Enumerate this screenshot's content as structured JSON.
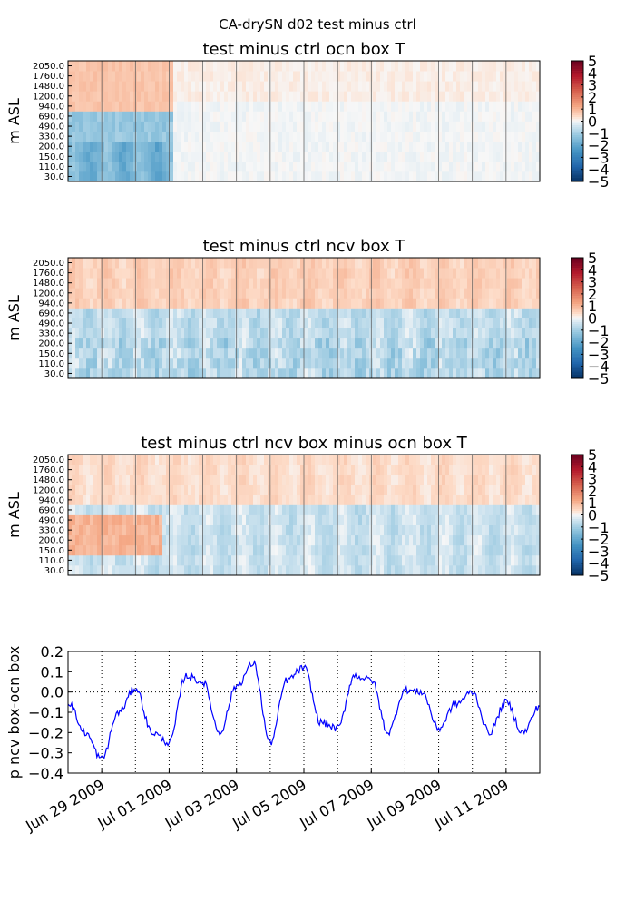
{
  "suptitle": "CA-drySN d02 test minus ctrl",
  "chart_data": [
    {
      "type": "heatmap",
      "title": "test minus ctrl ocn box T",
      "ylabel": "m ASL",
      "y_tick_labels": [
        "30.0",
        "110.0",
        "150.0",
        "200.0",
        "330.0",
        "490.0",
        "690.0",
        "940.0",
        "1200.0",
        "1480.0",
        "1760.0",
        "2050.0"
      ],
      "x_range": [
        "2009-06-28",
        "2009-07-12"
      ],
      "vertical_gridlines": [
        "2009-06-29",
        "2009-06-30",
        "2009-07-01",
        "2009-07-02",
        "2009-07-03",
        "2009-07-04",
        "2009-07-05",
        "2009-07-06",
        "2009-07-07",
        "2009-07-08",
        "2009-07-09",
        "2009-07-10",
        "2009-07-11"
      ],
      "colormap": "RdBu_r",
      "colorbar_range": [
        -5,
        5
      ],
      "colorbar_ticks": [
        "5",
        "4",
        "3",
        "2",
        "1",
        "0",
        "−1",
        "−2",
        "−3",
        "−4",
        "−5"
      ]
    },
    {
      "type": "heatmap",
      "title": "test minus ctrl ncv box T",
      "ylabel": "m ASL",
      "y_tick_labels": [
        "30.0",
        "110.0",
        "150.0",
        "200.0",
        "330.0",
        "490.0",
        "690.0",
        "940.0",
        "1200.0",
        "1480.0",
        "1760.0",
        "2050.0"
      ],
      "x_range": [
        "2009-06-28",
        "2009-07-12"
      ],
      "vertical_gridlines": [
        "2009-06-29",
        "2009-06-30",
        "2009-07-01",
        "2009-07-02",
        "2009-07-03",
        "2009-07-04",
        "2009-07-05",
        "2009-07-06",
        "2009-07-07",
        "2009-07-08",
        "2009-07-09",
        "2009-07-10",
        "2009-07-11"
      ],
      "colormap": "RdBu_r",
      "colorbar_range": [
        -5,
        5
      ],
      "colorbar_ticks": [
        "5",
        "4",
        "3",
        "2",
        "1",
        "0",
        "−1",
        "−2",
        "−3",
        "−4",
        "−5"
      ]
    },
    {
      "type": "heatmap",
      "title": "test minus ctrl ncv box minus ocn box T",
      "ylabel": "m ASL",
      "y_tick_labels": [
        "30.0",
        "110.0",
        "150.0",
        "200.0",
        "330.0",
        "490.0",
        "690.0",
        "940.0",
        "1200.0",
        "1480.0",
        "1760.0",
        "2050.0"
      ],
      "x_range": [
        "2009-06-28",
        "2009-07-12"
      ],
      "vertical_gridlines": [
        "2009-06-29",
        "2009-06-30",
        "2009-07-01",
        "2009-07-02",
        "2009-07-03",
        "2009-07-04",
        "2009-07-05",
        "2009-07-06",
        "2009-07-07",
        "2009-07-08",
        "2009-07-09",
        "2009-07-10",
        "2009-07-11"
      ],
      "colormap": "RdBu_r",
      "colorbar_range": [
        -5,
        5
      ],
      "colorbar_ticks": [
        "5",
        "4",
        "3",
        "2",
        "1",
        "0",
        "−1",
        "−2",
        "−3",
        "−4",
        "−5"
      ]
    },
    {
      "type": "line",
      "title": "",
      "ylabel": "p ncv box-ocn box",
      "xlabel": "",
      "x_range": [
        "2009-06-28",
        "2009-07-12"
      ],
      "ylim": [
        -0.4,
        0.2
      ],
      "y_ticks": [
        "0.2",
        "0.1",
        "0.0",
        "−0.1",
        "−0.2",
        "−0.3",
        "−0.4"
      ],
      "x_tick_labels": [
        "Jun 29 2009",
        "Jul 01 2009",
        "Jul 03 2009",
        "Jul 05 2009",
        "Jul 07 2009",
        "Jul 09 2009",
        "Jul 11 2009"
      ],
      "x_tick_dates": [
        "2009-06-29",
        "2009-07-01",
        "2009-07-03",
        "2009-07-05",
        "2009-07-07",
        "2009-07-09",
        "2009-07-11"
      ],
      "reference_line": 0.0,
      "grid": "vertical dotted",
      "series": [
        {
          "color": "#0000ff",
          "x": [
            "2009-06-28",
            "2009-06-28T12:00",
            "2009-06-29",
            "2009-06-29T12:00",
            "2009-06-30",
            "2009-06-30T12:00",
            "2009-07-01",
            "2009-07-01T12:00",
            "2009-07-02",
            "2009-07-02T12:00",
            "2009-07-03",
            "2009-07-03T12:00",
            "2009-07-04",
            "2009-07-04T12:00",
            "2009-07-05",
            "2009-07-05T12:00",
            "2009-07-06",
            "2009-07-06T12:00",
            "2009-07-07",
            "2009-07-07T12:00",
            "2009-07-08",
            "2009-07-08T12:00",
            "2009-07-09",
            "2009-07-09T12:00",
            "2009-07-10",
            "2009-07-10T12:00",
            "2009-07-11",
            "2009-07-11T12:00",
            "2009-07-12"
          ],
          "y": [
            -0.05,
            -0.2,
            -0.33,
            -0.1,
            0.02,
            -0.2,
            -0.25,
            0.08,
            0.05,
            -0.2,
            0.03,
            0.14,
            -0.25,
            0.06,
            0.12,
            -0.15,
            -0.18,
            0.08,
            0.06,
            -0.2,
            0.01,
            0.0,
            -0.18,
            -0.06,
            0.0,
            -0.2,
            -0.05,
            -0.2,
            -0.07
          ]
        }
      ]
    }
  ],
  "colors": {
    "line": "#0000ff",
    "gridline": "#000000"
  }
}
